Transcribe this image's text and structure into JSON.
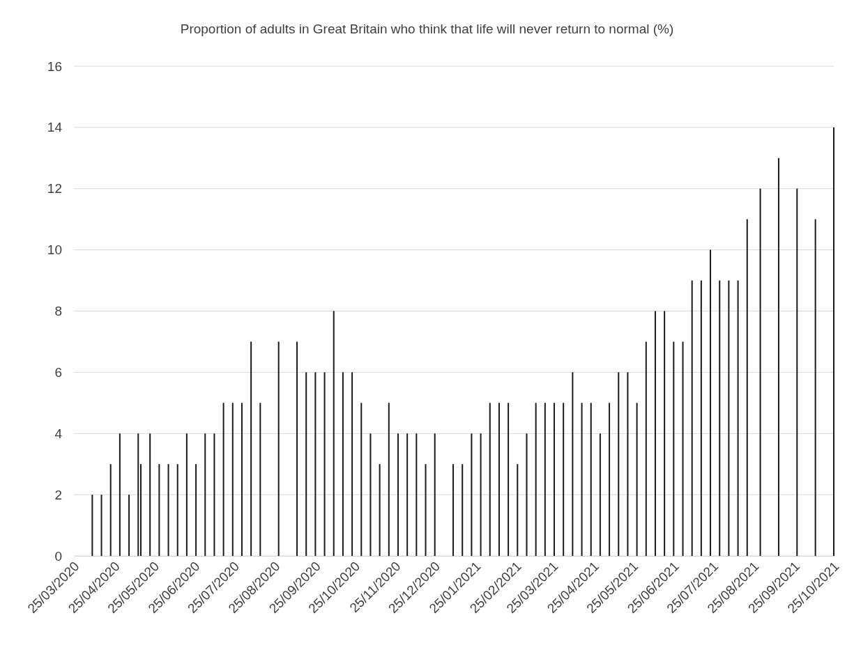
{
  "chart_data": {
    "type": "bar",
    "title": "Proportion of adults in Great Britain who think that life will never return to normal (%)",
    "x": [
      "2020-04-08",
      "2020-04-15",
      "2020-04-22",
      "2020-04-29",
      "2020-05-06",
      "2020-05-13",
      "2020-05-15",
      "2020-05-22",
      "2020-05-29",
      "2020-06-05",
      "2020-06-12",
      "2020-06-19",
      "2020-06-26",
      "2020-07-03",
      "2020-07-10",
      "2020-07-17",
      "2020-07-24",
      "2020-07-31",
      "2020-08-07",
      "2020-08-14",
      "2020-08-28",
      "2020-09-11",
      "2020-09-18",
      "2020-09-25",
      "2020-10-02",
      "2020-10-09",
      "2020-10-16",
      "2020-10-23",
      "2020-10-30",
      "2020-11-06",
      "2020-11-13",
      "2020-11-20",
      "2020-11-27",
      "2020-12-04",
      "2020-12-11",
      "2020-12-18",
      "2020-12-25",
      "2021-01-08",
      "2021-01-15",
      "2021-01-22",
      "2021-01-29",
      "2021-02-05",
      "2021-02-12",
      "2021-02-19",
      "2021-02-26",
      "2021-03-05",
      "2021-03-12",
      "2021-03-19",
      "2021-03-26",
      "2021-04-02",
      "2021-04-09",
      "2021-04-16",
      "2021-04-23",
      "2021-04-30",
      "2021-05-07",
      "2021-05-14",
      "2021-05-21",
      "2021-05-28",
      "2021-06-04",
      "2021-06-11",
      "2021-06-18",
      "2021-06-25",
      "2021-07-02",
      "2021-07-09",
      "2021-07-16",
      "2021-07-23",
      "2021-07-30",
      "2021-08-06",
      "2021-08-13",
      "2021-08-20",
      "2021-08-30",
      "2021-09-13",
      "2021-09-27",
      "2021-10-11",
      "2021-10-25"
    ],
    "values": [
      2,
      2,
      3,
      4,
      2,
      4,
      3,
      4,
      3,
      3,
      3,
      4,
      3,
      4,
      4,
      5,
      5,
      5,
      7,
      5,
      7,
      7,
      6,
      6,
      6,
      8,
      6,
      6,
      5,
      4,
      3,
      5,
      4,
      4,
      4,
      3,
      4,
      3,
      3,
      4,
      4,
      5,
      5,
      5,
      3,
      4,
      5,
      5,
      5,
      5,
      6,
      5,
      5,
      4,
      5,
      6,
      6,
      5,
      7,
      8,
      8,
      7,
      7,
      9,
      9,
      10,
      9,
      9,
      9,
      11,
      12,
      13,
      12,
      11,
      14
    ],
    "color": "#1a1a1a",
    "xlim": [
      "2020-03-25",
      "2021-10-25"
    ],
    "xticks": [
      {
        "value": "2020-03-25",
        "label": "25/03/2020"
      },
      {
        "value": "2020-04-25",
        "label": "25/04/2020"
      },
      {
        "value": "2020-05-25",
        "label": "25/05/2020"
      },
      {
        "value": "2020-06-25",
        "label": "25/06/2020"
      },
      {
        "value": "2020-07-25",
        "label": "25/07/2020"
      },
      {
        "value": "2020-08-25",
        "label": "25/08/2020"
      },
      {
        "value": "2020-09-25",
        "label": "25/09/2020"
      },
      {
        "value": "2020-10-25",
        "label": "25/10/2020"
      },
      {
        "value": "2020-11-25",
        "label": "25/11/2020"
      },
      {
        "value": "2020-12-25",
        "label": "25/12/2020"
      },
      {
        "value": "2021-01-25",
        "label": "25/01/2021"
      },
      {
        "value": "2021-02-25",
        "label": "25/02/2021"
      },
      {
        "value": "2021-03-25",
        "label": "25/03/2021"
      },
      {
        "value": "2021-04-25",
        "label": "25/04/2021"
      },
      {
        "value": "2021-05-25",
        "label": "25/05/2021"
      },
      {
        "value": "2021-06-25",
        "label": "25/06/2021"
      },
      {
        "value": "2021-07-25",
        "label": "25/07/2021"
      },
      {
        "value": "2021-08-25",
        "label": "25/08/2021"
      },
      {
        "value": "2021-09-25",
        "label": "25/09/2021"
      },
      {
        "value": "2021-10-25",
        "label": "25/10/2021"
      }
    ],
    "ylim": [
      0,
      16
    ],
    "yticks": [
      0,
      2,
      4,
      6,
      8,
      10,
      12,
      14,
      16
    ],
    "grid": "y"
  }
}
